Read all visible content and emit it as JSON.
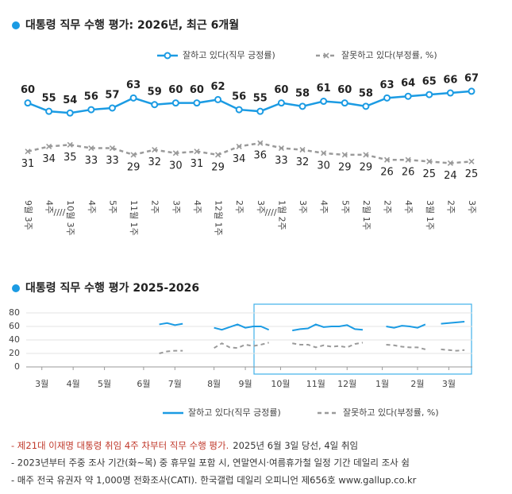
{
  "chart_data": [
    {
      "type": "line",
      "title": "대통령 직무 수행 평가: 2026년, 최근 6개월",
      "categories": [
        "9월 3주",
        "4주",
        "10월 3주",
        "4주",
        "5주",
        "11월 1주",
        "2주",
        "3주",
        "4주",
        "12월 1주",
        "2주",
        "3주",
        "1월 2주",
        "3주",
        "4주",
        "5주",
        "2월 1주",
        "2주",
        "4주",
        "3월 1주",
        "2주",
        "3주"
      ],
      "axis_break": {
        "label": "////",
        "after": [
          1,
          11
        ]
      },
      "ylim": [
        0,
        85
      ],
      "series": [
        {
          "name": "잘하고 있다(직무 긍정률)",
          "color": "#1b9be3",
          "marker": "circle",
          "values": [
            60,
            55,
            54,
            56,
            57,
            63,
            59,
            60,
            60,
            62,
            56,
            55,
            60,
            58,
            61,
            60,
            58,
            63,
            64,
            65,
            66,
            67
          ]
        },
        {
          "name": "잘못하고 있다(부정률, %)",
          "color": "#9a9a9a",
          "marker": "x",
          "dashed": true,
          "values": [
            31,
            34,
            35,
            33,
            33,
            29,
            32,
            30,
            31,
            29,
            34,
            36,
            33,
            32,
            30,
            29,
            29,
            26,
            26,
            25,
            24,
            25
          ]
        }
      ]
    },
    {
      "type": "line",
      "title": "대통령 직무 수행 평가 2025-2026",
      "xlim": [
        0,
        57
      ],
      "xticks": [
        {
          "value": 2,
          "label": "3월"
        },
        {
          "value": 6,
          "label": "4월"
        },
        {
          "value": 10,
          "label": "5월"
        },
        {
          "value": 15,
          "label": "6월"
        },
        {
          "value": 19,
          "label": "7월"
        },
        {
          "value": 24,
          "label": "8월"
        },
        {
          "value": 28,
          "label": "9월"
        },
        {
          "value": 32.5,
          "label": "10월"
        },
        {
          "value": 37,
          "label": "11월"
        },
        {
          "value": 41,
          "label": "12월"
        },
        {
          "value": 45.5,
          "label": "1월"
        },
        {
          "value": 50,
          "label": "2월"
        },
        {
          "value": 54,
          "label": "3월"
        }
      ],
      "ylim": [
        0,
        80
      ],
      "yticks": [
        0,
        20,
        40,
        60,
        80
      ],
      "grid": true,
      "x": [
        17,
        18,
        19,
        20,
        21,
        22,
        23,
        24,
        25,
        26,
        27,
        28,
        29,
        30,
        31,
        32,
        33,
        34,
        35,
        36,
        37,
        38,
        39,
        40,
        41,
        42,
        43,
        44,
        45,
        46,
        47,
        48,
        49,
        50,
        51,
        52,
        53,
        54,
        55,
        56
      ],
      "series": [
        {
          "name": "잘하고 있다(직무 긍정률)",
          "color": "#1b9be3",
          "values": [
            63,
            65,
            62,
            64,
            null,
            null,
            null,
            58,
            55,
            59,
            63,
            58,
            60,
            60,
            55,
            null,
            null,
            54,
            56,
            57,
            63,
            59,
            60,
            60,
            62,
            56,
            55,
            null,
            null,
            60,
            58,
            61,
            60,
            58,
            63,
            null,
            64,
            65,
            66,
            67
          ]
        },
        {
          "name": "잘못하고 있다(부정률, %)",
          "color": "#9a9a9a",
          "dashed": true,
          "values": [
            20,
            23,
            24,
            24,
            null,
            null,
            null,
            28,
            35,
            29,
            28,
            33,
            31,
            33,
            36,
            null,
            null,
            35,
            33,
            33,
            29,
            32,
            30,
            31,
            29,
            34,
            36,
            null,
            null,
            33,
            32,
            30,
            29,
            29,
            26,
            null,
            26,
            25,
            24,
            25
          ]
        }
      ]
    }
  ],
  "notes": [
    [
      "- 제21대 이재명 대통령 취임 4주 차부터 직무 수행 평가.",
      "2025년 6월 3일 당선, 4일 취임"
    ],
    [
      "- 2023년부터 주중 조사 기간(화~목) 중 휴무일 포함 시, 연말연시·여름휴가철 일정 기간 데일리 조사 쉼"
    ],
    [
      "- 매주 전국 유권자 약 1,000명 전화조사(CATI). 한국갤럽 데일리 오피니언 제656호 www.gallup.co.kr"
    ]
  ]
}
